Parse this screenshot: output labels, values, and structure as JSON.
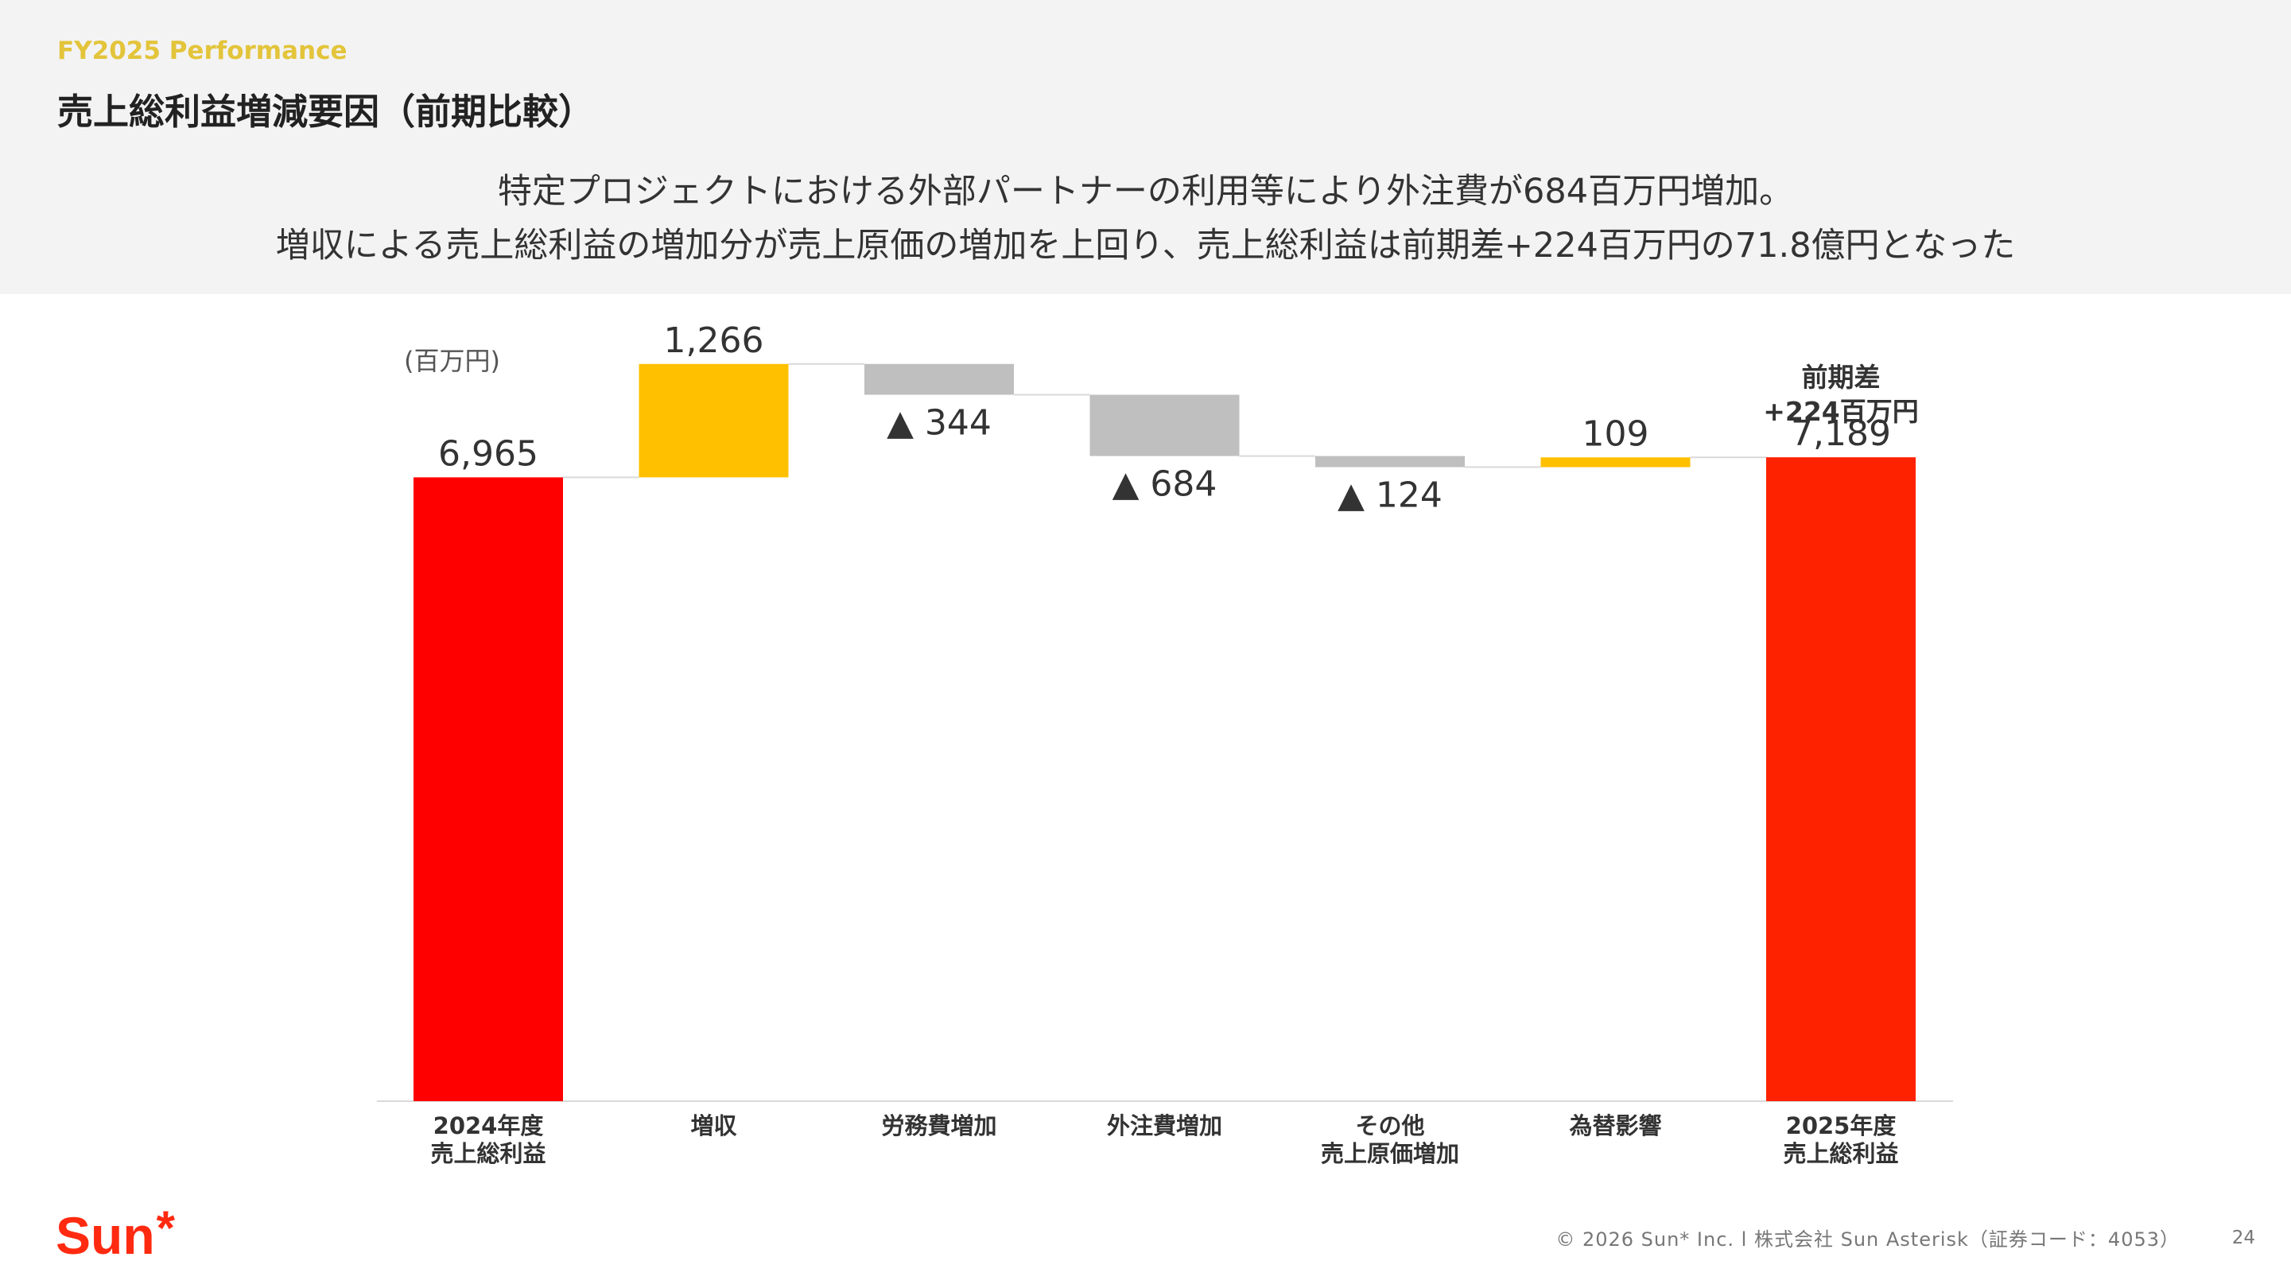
{
  "header": {
    "section_label": "FY2025 Performance",
    "title": "売上総利益増減要因（前期比較）",
    "subtitle_line1": "特定プロジェクトにおける外部パートナーの利用等により外注費が684百万円増加。",
    "subtitle_line2": "増収による売上総利益の増加分が売上原価の増加を上回り、売上総利益は前期差+224百万円の71.8億円となった"
  },
  "chart_data": {
    "type": "bar",
    "subtype": "waterfall",
    "unit_label": "(百万円)",
    "categories": [
      "2024年度\n売上総利益",
      "増収",
      "労務費増加",
      "外注費増加",
      "その他\n売上原価増加",
      "為替影響",
      "2025年度\n売上総利益"
    ],
    "steps": [
      {
        "kind": "total",
        "value": 6965,
        "label": "6,965",
        "color": "#ff0000"
      },
      {
        "kind": "increase",
        "value": 1266,
        "label": "1,266",
        "color": "#ffc000"
      },
      {
        "kind": "decrease",
        "value": -344,
        "label": "▲ 344",
        "color": "#bfbfbf"
      },
      {
        "kind": "decrease",
        "value": -684,
        "label": "▲ 684",
        "color": "#bfbfbf"
      },
      {
        "kind": "decrease",
        "value": -124,
        "label": "▲ 124",
        "color": "#bfbfbf"
      },
      {
        "kind": "increase",
        "value": 109,
        "label": "109",
        "color": "#ffc000"
      },
      {
        "kind": "total",
        "value": 7189,
        "label": "7,189",
        "color": "#ff2200"
      }
    ],
    "annotation": {
      "lines": [
        "前期差",
        "+224百万円"
      ],
      "category_index": 6
    },
    "ylim": [
      0,
      8300
    ],
    "grid": false,
    "legend": "none"
  },
  "footer": {
    "logo_text": "Sun",
    "logo_mark": "*",
    "copyright": "© 2026 Sun* Inc.  l  株式会社 Sun Asterisk（証券コード：4053）",
    "page_number": "24"
  },
  "colors": {
    "accent_yellow": "#e3c43a",
    "brand_red": "#ff2a10",
    "total_bar": "#ff0000",
    "increase_bar": "#ffc000",
    "decrease_bar": "#bfbfbf"
  }
}
